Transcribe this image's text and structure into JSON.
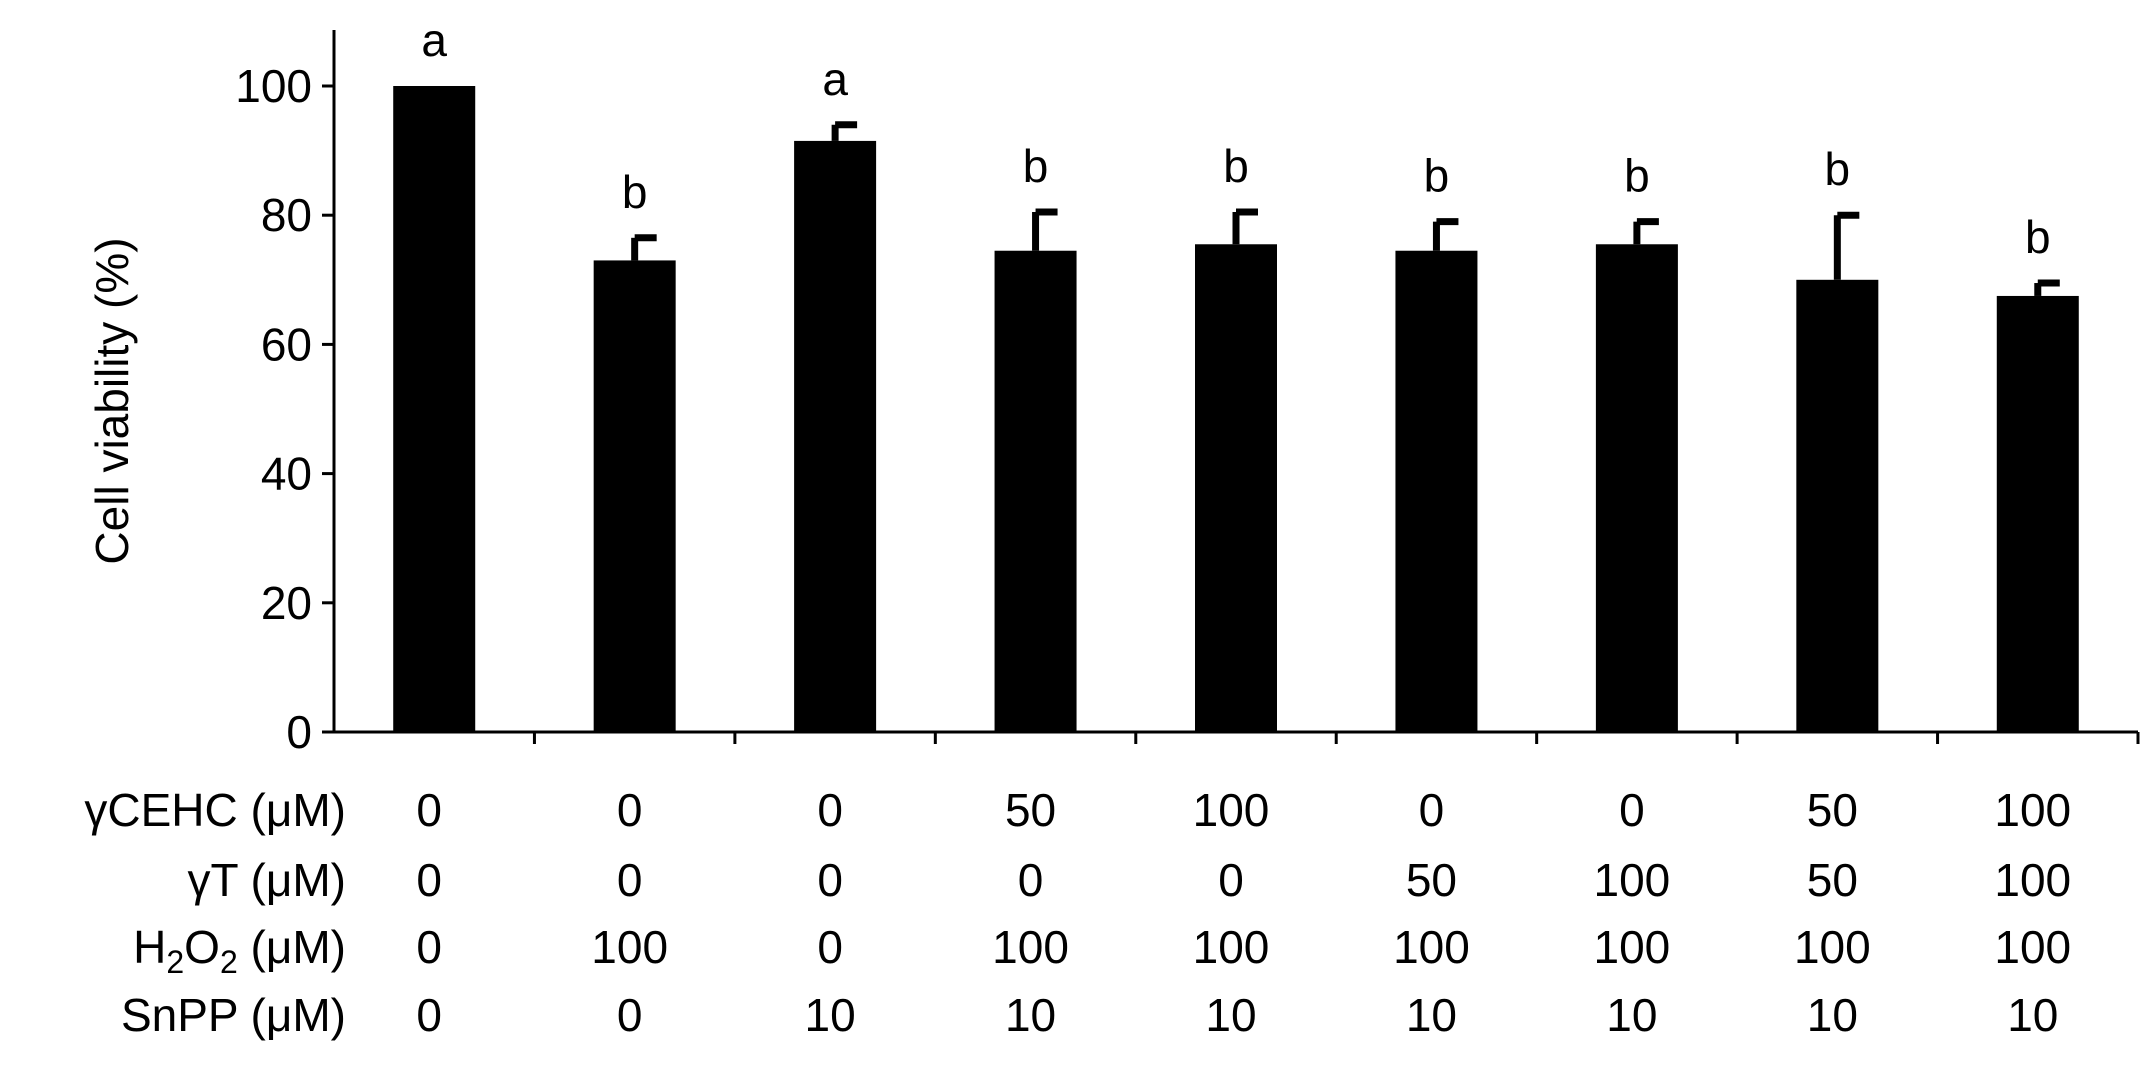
{
  "chart_data": {
    "type": "bar",
    "ylabel": "Cell viability (%)",
    "ylim": [
      0,
      100
    ],
    "yticks": [
      "0",
      "20",
      "40",
      "60",
      "80",
      "100"
    ],
    "grid": false,
    "bar_color": "#000000",
    "values": [
      100,
      73,
      91.5,
      74.5,
      75.5,
      74.5,
      75.5,
      70,
      67.5
    ],
    "error": [
      0,
      3.5,
      2.5,
      6,
      5,
      4.5,
      3.5,
      10,
      2
    ],
    "letters": [
      "a",
      "b",
      "a",
      "b",
      "b",
      "b",
      "b",
      "b",
      "b"
    ],
    "rows": [
      {
        "label": "γCEHC (μM)",
        "values": [
          "0",
          "0",
          "0",
          "50",
          "100",
          "0",
          "0",
          "50",
          "100"
        ]
      },
      {
        "label": "γT (μM)",
        "values": [
          "0",
          "0",
          "0",
          "0",
          "0",
          "50",
          "100",
          "50",
          "100"
        ]
      },
      {
        "label": "H2O2 (μM)",
        "values": [
          "0",
          "100",
          "0",
          "100",
          "100",
          "100",
          "100",
          "100",
          "100"
        ]
      },
      {
        "label": "SnPP (μM)",
        "values": [
          "0",
          "0",
          "10",
          "10",
          "10",
          "10",
          "10",
          "10",
          "10"
        ]
      }
    ],
    "rows_h2o2": {
      "label_main": "H",
      "sub1": "2",
      "mid": "O",
      "sub2": "2",
      "unit": " (μM)"
    }
  }
}
